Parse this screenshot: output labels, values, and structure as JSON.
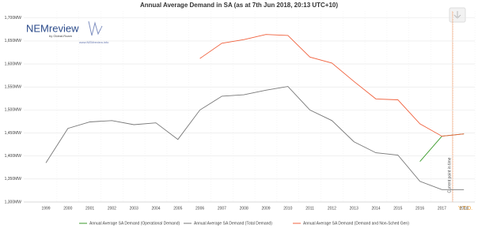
{
  "logo": {
    "name": "NEMreview",
    "byline": "by Global-Roam",
    "url": "www.NEMreview.info"
  },
  "chart_data": {
    "type": "line",
    "title": "Annual Average Demand in SA (as at 7th Jun 2018, 20:13 UTC+10)",
    "categories": [
      "1999",
      "2000",
      "2001",
      "2002",
      "2003",
      "2004",
      "2005",
      "2006",
      "2007",
      "2008",
      "2009",
      "2010",
      "2011",
      "2012",
      "2013",
      "2014",
      "2015",
      "2016",
      "2017",
      "2018"
    ],
    "series": [
      {
        "name": "Annual Average SA Demand (Operational Demand)",
        "color": "#3a9a2a",
        "values": [
          null,
          null,
          null,
          null,
          null,
          null,
          null,
          null,
          null,
          null,
          null,
          null,
          null,
          null,
          null,
          null,
          null,
          1388,
          1443,
          1448
        ]
      },
      {
        "name": "Annual Average SA Demand (Total Demand)",
        "color": "#777777",
        "values": [
          1385,
          1460,
          1474,
          1477,
          1468,
          1472,
          1436,
          1500,
          1530,
          1533,
          1543,
          1551,
          1500,
          1477,
          1431,
          1407,
          1402,
          1345,
          1327,
          1327
        ]
      },
      {
        "name": "Annual Average SA Demand (Demand and Non-Sched Gen)",
        "color": "#f0603c",
        "values": [
          null,
          null,
          null,
          null,
          null,
          null,
          null,
          1612,
          1645,
          1653,
          1664,
          1662,
          1615,
          1602,
          1562,
          1524,
          1522,
          1470,
          1443,
          1448
        ]
      }
    ],
    "ylim": [
      1300,
      1715
    ],
    "yticks": [
      {
        "value": 1300,
        "label": "1,300MW"
      },
      {
        "value": 1350,
        "label": "1,350MW"
      },
      {
        "value": 1400,
        "label": "1,400MW"
      },
      {
        "value": 1450,
        "label": "1,450MW"
      },
      {
        "value": 1500,
        "label": "1,500MW"
      },
      {
        "value": 1550,
        "label": "1,550MW"
      },
      {
        "value": 1600,
        "label": "1,600MW"
      },
      {
        "value": 1650,
        "label": "1,650MW"
      },
      {
        "value": 1700,
        "label": "1,700MW"
      }
    ],
    "grid": true,
    "annotations": [
      "Current point in time",
      "Y.T.D."
    ]
  }
}
